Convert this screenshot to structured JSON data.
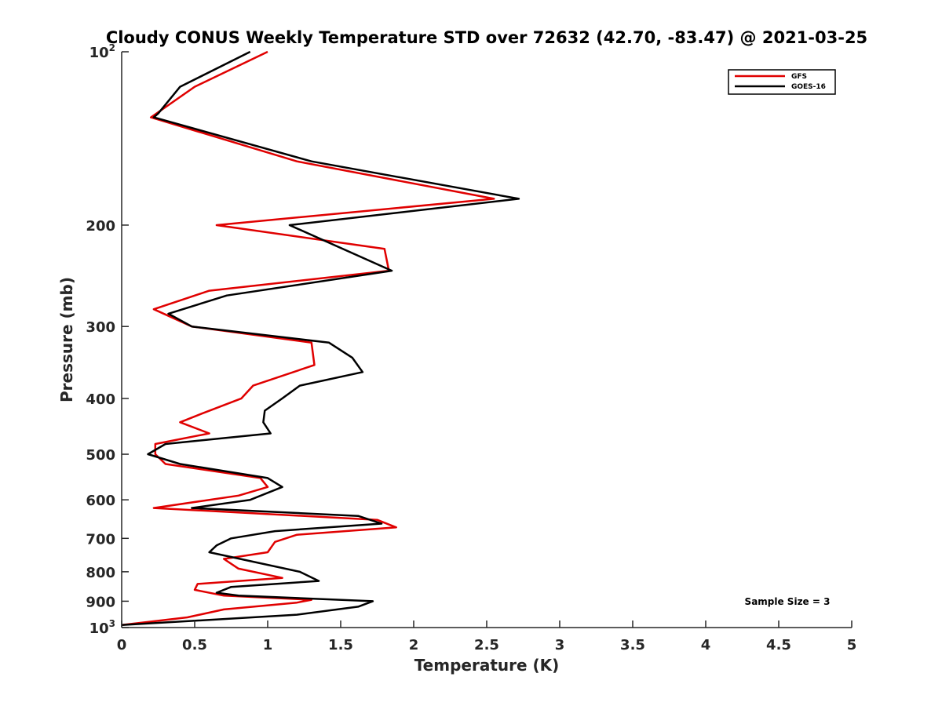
{
  "chart_data": {
    "type": "line",
    "orientation": "vertical-profile",
    "title": "Cloudy CONUS Weekly Temperature STD over 72632 (42.70, -83.47) @ 2021-03-25",
    "xlabel": "Temperature (K)",
    "ylabel": "Pressure (mb)",
    "xlim": [
      0,
      5
    ],
    "ylim": [
      100,
      1000
    ],
    "y_scale": "log",
    "y_reversed": true,
    "grid": false,
    "legend_position": "top-right",
    "annotation": "Sample Size = 3",
    "x_ticks": [
      "0",
      "0.5",
      "1",
      "1.5",
      "2",
      "2.5",
      "3",
      "3.5",
      "4",
      "4.5",
      "5"
    ],
    "y_ticks": [
      {
        "value": 100,
        "base": "10",
        "exp": "2"
      },
      {
        "value": 200,
        "label": "200"
      },
      {
        "value": 300,
        "label": "300"
      },
      {
        "value": 400,
        "label": "400"
      },
      {
        "value": 500,
        "label": "500"
      },
      {
        "value": 600,
        "label": "600"
      },
      {
        "value": 700,
        "label": "700"
      },
      {
        "value": 800,
        "label": "800"
      },
      {
        "value": 900,
        "label": "900"
      },
      {
        "value": 1000,
        "base": "10",
        "exp": "3"
      }
    ],
    "series": [
      {
        "name": "GFS",
        "color": "#e00000",
        "points": [
          {
            "x": 1.0,
            "p": 100
          },
          {
            "x": 0.5,
            "p": 115
          },
          {
            "x": 0.2,
            "p": 130
          },
          {
            "x": 1.2,
            "p": 155
          },
          {
            "x": 2.55,
            "p": 180
          },
          {
            "x": 0.65,
            "p": 200
          },
          {
            "x": 1.8,
            "p": 220
          },
          {
            "x": 1.83,
            "p": 240
          },
          {
            "x": 0.6,
            "p": 260
          },
          {
            "x": 0.22,
            "p": 280
          },
          {
            "x": 0.48,
            "p": 300
          },
          {
            "x": 1.3,
            "p": 320
          },
          {
            "x": 1.32,
            "p": 350
          },
          {
            "x": 0.9,
            "p": 380
          },
          {
            "x": 0.82,
            "p": 400
          },
          {
            "x": 0.55,
            "p": 425
          },
          {
            "x": 0.4,
            "p": 440
          },
          {
            "x": 0.6,
            "p": 460
          },
          {
            "x": 0.23,
            "p": 480
          },
          {
            "x": 0.23,
            "p": 500
          },
          {
            "x": 0.3,
            "p": 520
          },
          {
            "x": 0.95,
            "p": 550
          },
          {
            "x": 1.0,
            "p": 570
          },
          {
            "x": 0.8,
            "p": 590
          },
          {
            "x": 0.22,
            "p": 620
          },
          {
            "x": 1.75,
            "p": 650
          },
          {
            "x": 1.88,
            "p": 670
          },
          {
            "x": 1.2,
            "p": 690
          },
          {
            "x": 1.05,
            "p": 710
          },
          {
            "x": 1.0,
            "p": 740
          },
          {
            "x": 0.7,
            "p": 760
          },
          {
            "x": 0.8,
            "p": 790
          },
          {
            "x": 1.1,
            "p": 820
          },
          {
            "x": 0.52,
            "p": 840
          },
          {
            "x": 0.5,
            "p": 860
          },
          {
            "x": 0.7,
            "p": 880
          },
          {
            "x": 1.3,
            "p": 895
          },
          {
            "x": 1.2,
            "p": 905
          },
          {
            "x": 0.7,
            "p": 930
          },
          {
            "x": 0.45,
            "p": 960
          },
          {
            "x": 0.0,
            "p": 990
          }
        ]
      },
      {
        "name": "GOES-16",
        "color": "#000000",
        "points": [
          {
            "x": 0.88,
            "p": 100
          },
          {
            "x": 0.4,
            "p": 115
          },
          {
            "x": 0.25,
            "p": 128
          },
          {
            "x": 0.22,
            "p": 130
          },
          {
            "x": 1.3,
            "p": 155
          },
          {
            "x": 2.72,
            "p": 180
          },
          {
            "x": 1.15,
            "p": 200
          },
          {
            "x": 1.85,
            "p": 240
          },
          {
            "x": 0.72,
            "p": 265
          },
          {
            "x": 0.32,
            "p": 285
          },
          {
            "x": 0.48,
            "p": 300
          },
          {
            "x": 1.42,
            "p": 320
          },
          {
            "x": 1.58,
            "p": 340
          },
          {
            "x": 1.65,
            "p": 360
          },
          {
            "x": 1.22,
            "p": 380
          },
          {
            "x": 1.1,
            "p": 400
          },
          {
            "x": 0.98,
            "p": 420
          },
          {
            "x": 0.97,
            "p": 440
          },
          {
            "x": 1.02,
            "p": 460
          },
          {
            "x": 0.3,
            "p": 480
          },
          {
            "x": 0.18,
            "p": 500
          },
          {
            "x": 0.4,
            "p": 520
          },
          {
            "x": 1.0,
            "p": 550
          },
          {
            "x": 1.1,
            "p": 570
          },
          {
            "x": 0.88,
            "p": 600
          },
          {
            "x": 0.48,
            "p": 620
          },
          {
            "x": 1.62,
            "p": 640
          },
          {
            "x": 1.78,
            "p": 660
          },
          {
            "x": 1.05,
            "p": 680
          },
          {
            "x": 0.75,
            "p": 700
          },
          {
            "x": 0.65,
            "p": 720
          },
          {
            "x": 0.6,
            "p": 740
          },
          {
            "x": 1.22,
            "p": 800
          },
          {
            "x": 1.35,
            "p": 830
          },
          {
            "x": 0.75,
            "p": 850
          },
          {
            "x": 0.65,
            "p": 870
          },
          {
            "x": 0.8,
            "p": 880
          },
          {
            "x": 1.72,
            "p": 900
          },
          {
            "x": 1.62,
            "p": 920
          },
          {
            "x": 1.2,
            "p": 950
          },
          {
            "x": 0.0,
            "p": 990
          }
        ]
      }
    ]
  }
}
